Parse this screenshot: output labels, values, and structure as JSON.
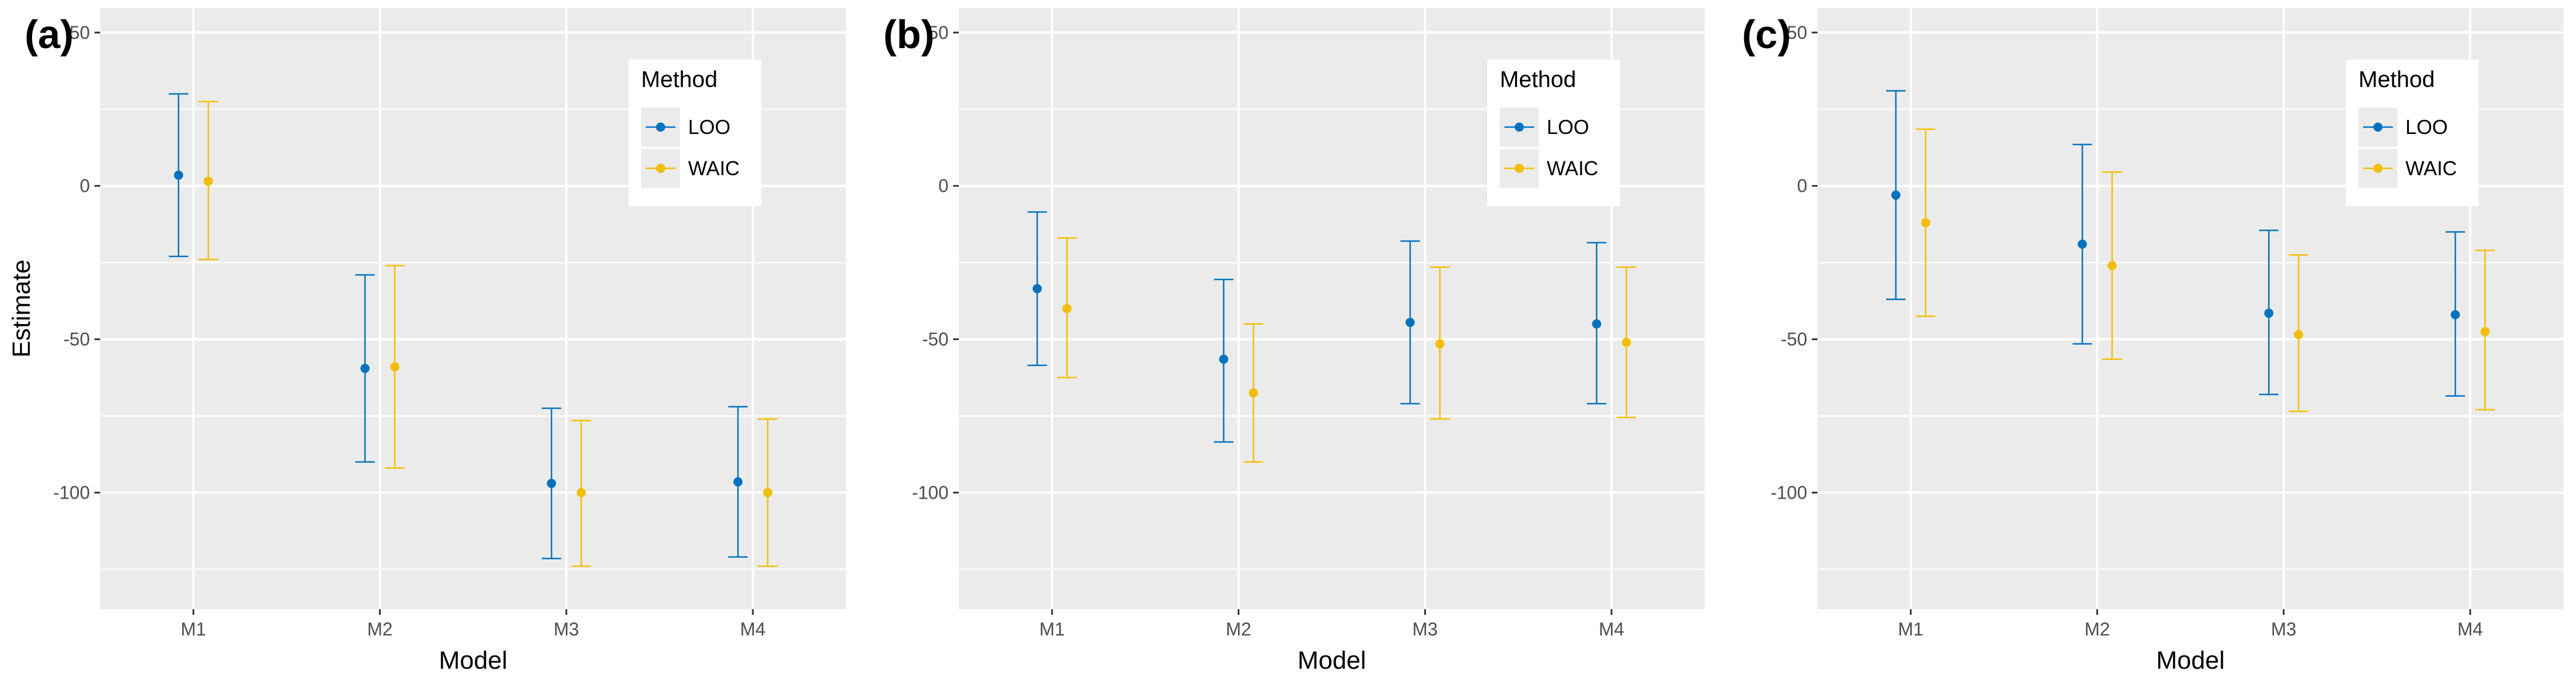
{
  "colors": {
    "panel_bg": "#EBEBEB",
    "grid": "#FFFFFF",
    "loo": "#0072BD",
    "waic": "#F2BE05",
    "tick_text": "#4D4D4D",
    "text": "#000000"
  },
  "chart_data": [
    {
      "type": "errorbar",
      "panel_label": "(a)",
      "xlabel": "Model",
      "ylabel": "Estimate",
      "categories": [
        "M1",
        "M2",
        "M3",
        "M4"
      ],
      "ylim": [
        -138,
        58
      ],
      "yticks": [
        50,
        0,
        -50,
        -100
      ],
      "ytick_labels": [
        "50",
        "0",
        "-50",
        "-100"
      ],
      "grid": true,
      "legend": {
        "title": "Method",
        "position": "top-right"
      },
      "series": [
        {
          "name": "LOO",
          "values": [
            3.5,
            -59.5,
            -97,
            -96.5
          ],
          "lower": [
            -23,
            -90,
            -121.5,
            -121
          ],
          "upper": [
            30,
            -29,
            -72.5,
            -72
          ]
        },
        {
          "name": "WAIC",
          "values": [
            1.5,
            -59,
            -100,
            -100
          ],
          "lower": [
            -24,
            -92,
            -124,
            -124
          ],
          "upper": [
            27.5,
            -26,
            -76.5,
            -76
          ]
        }
      ]
    },
    {
      "type": "errorbar",
      "panel_label": "(b)",
      "xlabel": "Model",
      "ylabel": "",
      "categories": [
        "M1",
        "M2",
        "M3",
        "M4"
      ],
      "ylim": [
        -138,
        58
      ],
      "yticks": [
        50,
        0,
        -50,
        -100
      ],
      "ytick_labels": [
        "50",
        "0",
        "-50",
        "-100"
      ],
      "grid": true,
      "legend": {
        "title": "Method",
        "position": "top-right"
      },
      "series": [
        {
          "name": "LOO",
          "values": [
            -33.5,
            -56.5,
            -44.5,
            -45
          ],
          "lower": [
            -58.5,
            -83.5,
            -71,
            -71
          ],
          "upper": [
            -8.5,
            -30.5,
            -18,
            -18.5
          ]
        },
        {
          "name": "WAIC",
          "values": [
            -40,
            -67.5,
            -51.5,
            -51
          ],
          "lower": [
            -62.5,
            -90,
            -76,
            -75.5
          ],
          "upper": [
            -17,
            -45,
            -26.5,
            -26.5
          ]
        }
      ]
    },
    {
      "type": "errorbar",
      "panel_label": "(c)",
      "xlabel": "Model",
      "ylabel": "",
      "categories": [
        "M1",
        "M2",
        "M3",
        "M4"
      ],
      "ylim": [
        -138,
        58
      ],
      "yticks": [
        50,
        0,
        -50,
        -100
      ],
      "ytick_labels": [
        "50",
        "0",
        "-50",
        "-100"
      ],
      "grid": true,
      "legend": {
        "title": "Method",
        "position": "top-right"
      },
      "series": [
        {
          "name": "LOO",
          "values": [
            -3,
            -19,
            -41.5,
            -42
          ],
          "lower": [
            -37,
            -51.5,
            -68,
            -68.5
          ],
          "upper": [
            31,
            13.5,
            -14.5,
            -15
          ]
        },
        {
          "name": "WAIC",
          "values": [
            -12,
            -26,
            -48.5,
            -47.5
          ],
          "lower": [
            -42.5,
            -56.5,
            -73.5,
            -73
          ],
          "upper": [
            18.5,
            4.5,
            -22.5,
            -21
          ]
        }
      ]
    }
  ]
}
